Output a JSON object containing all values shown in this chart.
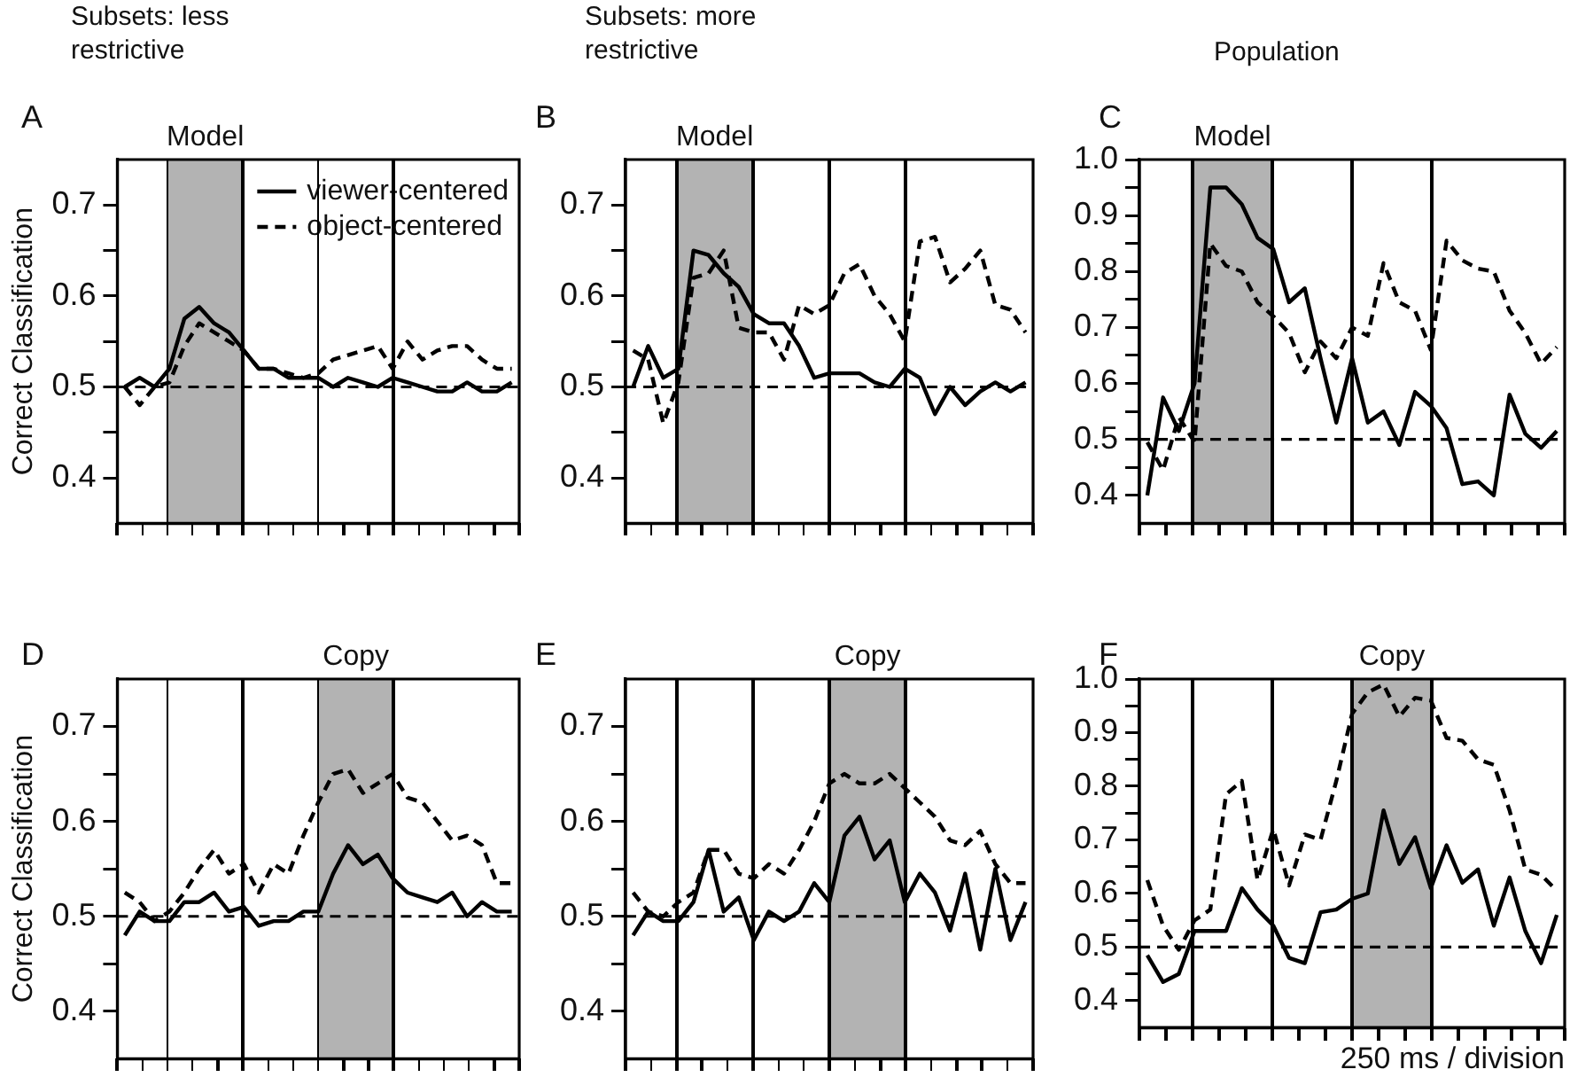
{
  "chart_data": [
    {
      "type": "line",
      "title": "Subsets: less restrictive",
      "ylabel": "Correct Classification",
      "annotations": [
        "A",
        "Model"
      ],
      "legend": "top right",
      "marker": "none",
      "grid": false,
      "tick_labels": "y",
      "categories": [
        null,
        null,
        null,
        null,
        null,
        null,
        null,
        null,
        null,
        null,
        null,
        null,
        null,
        null,
        null,
        null,
        null,
        null,
        null,
        null,
        null,
        null,
        null,
        null,
        null,
        null,
        null
      ],
      "series": [
        {
          "name": "viewer-centered",
          "color": "#000000",
          "line_style": "solid",
          "values": [
            0.5,
            0.51,
            0.5,
            0.52,
            0.575,
            0.588,
            0.57,
            0.56,
            0.54,
            0.52,
            0.52,
            0.51,
            0.51,
            0.51,
            0.5,
            0.51,
            0.505,
            0.5,
            0.51,
            0.505,
            0.5,
            0.495,
            0.495,
            0.505,
            0.495,
            0.495,
            0.505
          ]
        },
        {
          "name": "object-centered",
          "color": "#000000",
          "line_style": "dashed",
          "values": [
            0.5,
            0.48,
            0.5,
            0.505,
            0.545,
            0.57,
            0.56,
            0.55,
            0.54,
            0.52,
            0.52,
            0.515,
            0.51,
            0.515,
            0.53,
            0.535,
            0.54,
            0.545,
            0.52,
            0.55,
            0.53,
            0.54,
            0.545,
            0.545,
            0.53,
            0.52,
            0.52
          ]
        }
      ],
      "ylim": [
        0.35,
        0.75
      ],
      "yticks": [
        0.4,
        {
          "value": 0.45,
          "label": null
        },
        0.5,
        {
          "value": 0.55,
          "label": null
        },
        0.6,
        {
          "value": 0.65,
          "label": null
        },
        0.7
      ],
      "ref_lines": [
        {
          "axis": "y",
          "value": 0.5,
          "color": "#000000",
          "line_style": "dashed"
        }
      ]
    },
    {
      "type": "line",
      "title": "Subsets: more restrictive",
      "annotations": [
        "B",
        "Model"
      ],
      "marker": "none",
      "grid": false,
      "tick_labels": "y",
      "categories": [
        null,
        null,
        null,
        null,
        null,
        null,
        null,
        null,
        null,
        null,
        null,
        null,
        null,
        null,
        null,
        null,
        null,
        null,
        null,
        null,
        null,
        null,
        null,
        null,
        null,
        null,
        null
      ],
      "series": [
        {
          "color": "#000000",
          "line_style": "solid",
          "values": [
            0.5,
            0.545,
            0.51,
            0.52,
            0.65,
            0.645,
            0.625,
            0.61,
            0.58,
            0.57,
            0.57,
            0.545,
            0.51,
            0.515,
            0.515,
            0.515,
            0.505,
            0.5,
            0.52,
            0.51,
            0.47,
            0.5,
            0.48,
            0.495,
            0.505,
            0.495,
            0.505
          ]
        },
        {
          "color": "#000000",
          "line_style": "dashed",
          "values": [
            0.54,
            0.53,
            0.46,
            0.505,
            0.62,
            0.625,
            0.65,
            0.565,
            0.56,
            0.56,
            0.53,
            0.59,
            0.58,
            0.59,
            0.625,
            0.635,
            0.6,
            0.58,
            0.55,
            0.66,
            0.665,
            0.615,
            0.63,
            0.65,
            0.59,
            0.585,
            0.56
          ]
        }
      ],
      "ylim": [
        0.35,
        0.75
      ],
      "yticks": [
        0.4,
        {
          "value": 0.45,
          "label": null
        },
        0.5,
        {
          "value": 0.55,
          "label": null
        },
        0.6,
        {
          "value": 0.65,
          "label": null
        },
        0.7
      ],
      "ref_lines": [
        {
          "axis": "y",
          "value": 0.5,
          "color": "#000000",
          "line_style": "dashed"
        }
      ]
    },
    {
      "type": "line",
      "title": "Population",
      "annotations": [
        "C",
        "Model"
      ],
      "marker": "none",
      "grid": false,
      "tick_labels": "y",
      "categories": [
        null,
        null,
        null,
        null,
        null,
        null,
        null,
        null,
        null,
        null,
        null,
        null,
        null,
        null,
        null,
        null,
        null,
        null,
        null,
        null,
        null,
        null,
        null,
        null,
        null,
        null,
        null
      ],
      "series": [
        {
          "color": "#000000",
          "line_style": "solid",
          "values": [
            0.4,
            0.575,
            0.515,
            0.6,
            0.95,
            0.95,
            0.92,
            0.86,
            0.84,
            0.745,
            0.77,
            0.645,
            0.53,
            0.645,
            0.53,
            0.55,
            0.49,
            0.585,
            0.56,
            0.52,
            0.42,
            0.425,
            0.4,
            0.58,
            0.51,
            0.485,
            0.515
          ]
        },
        {
          "color": "#000000",
          "line_style": "dashed",
          "values": [
            0.495,
            0.445,
            0.54,
            0.495,
            0.85,
            0.81,
            0.8,
            0.745,
            0.72,
            0.69,
            0.62,
            0.675,
            0.645,
            0.7,
            0.685,
            0.815,
            0.745,
            0.73,
            0.66,
            0.855,
            0.82,
            0.805,
            0.8,
            0.73,
            0.69,
            0.635,
            0.665
          ]
        }
      ],
      "ylim": [
        0.35,
        1.0
      ],
      "yticks": [
        0.4,
        {
          "value": 0.45,
          "label": null
        },
        0.5,
        {
          "value": 0.55,
          "label": null
        },
        0.6,
        {
          "value": 0.65,
          "label": null
        },
        0.7,
        {
          "value": 0.75,
          "label": null
        },
        0.8,
        {
          "value": 0.85,
          "label": null
        },
        0.9,
        {
          "value": 0.95,
          "label": null
        },
        {
          "value": 1.0,
          "label": "1.0"
        }
      ],
      "ref_lines": [
        {
          "axis": "y",
          "value": 0.5,
          "color": "#000000",
          "line_style": "dashed"
        }
      ]
    },
    {
      "type": "line",
      "ylabel": "Correct Classification",
      "annotations": [
        "D",
        "Copy"
      ],
      "marker": "none",
      "grid": false,
      "tick_labels": "y",
      "categories": [
        null,
        null,
        null,
        null,
        null,
        null,
        null,
        null,
        null,
        null,
        null,
        null,
        null,
        null,
        null,
        null,
        null,
        null,
        null,
        null,
        null,
        null,
        null,
        null,
        null,
        null,
        null
      ],
      "series": [
        {
          "color": "#000000",
          "line_style": "solid",
          "values": [
            0.48,
            0.505,
            0.495,
            0.495,
            0.515,
            0.515,
            0.525,
            0.505,
            0.51,
            0.49,
            0.495,
            0.495,
            0.505,
            0.505,
            0.545,
            0.575,
            0.555,
            0.565,
            0.54,
            0.525,
            0.52,
            0.515,
            0.525,
            0.5,
            0.515,
            0.505,
            0.505
          ]
        },
        {
          "color": "#000000",
          "line_style": "dashed",
          "values": [
            0.525,
            0.515,
            0.495,
            0.505,
            0.525,
            0.55,
            0.57,
            0.545,
            0.555,
            0.525,
            0.555,
            0.545,
            0.585,
            0.62,
            0.65,
            0.655,
            0.63,
            0.64,
            0.65,
            0.625,
            0.62,
            0.6,
            0.58,
            0.585,
            0.575,
            0.535,
            0.535
          ]
        }
      ],
      "ylim": [
        0.35,
        0.75
      ],
      "yticks": [
        0.4,
        {
          "value": 0.45,
          "label": null
        },
        0.5,
        {
          "value": 0.55,
          "label": null
        },
        0.6,
        {
          "value": 0.65,
          "label": null
        },
        0.7
      ],
      "ref_lines": [
        {
          "axis": "y",
          "value": 0.5,
          "color": "#000000",
          "line_style": "dashed"
        }
      ]
    },
    {
      "type": "line",
      "annotations": [
        "E",
        "Copy"
      ],
      "marker": "none",
      "grid": false,
      "tick_labels": "y",
      "categories": [
        null,
        null,
        null,
        null,
        null,
        null,
        null,
        null,
        null,
        null,
        null,
        null,
        null,
        null,
        null,
        null,
        null,
        null,
        null,
        null,
        null,
        null,
        null,
        null,
        null,
        null,
        null
      ],
      "series": [
        {
          "color": "#000000",
          "line_style": "solid",
          "values": [
            0.48,
            0.505,
            0.495,
            0.495,
            0.515,
            0.57,
            0.505,
            0.52,
            0.475,
            0.505,
            0.495,
            0.505,
            0.535,
            0.515,
            0.585,
            0.605,
            0.56,
            0.58,
            0.515,
            0.545,
            0.525,
            0.485,
            0.545,
            0.465,
            0.55,
            0.475,
            0.515
          ]
        },
        {
          "color": "#000000",
          "line_style": "dashed",
          "values": [
            0.525,
            0.505,
            0.5,
            0.515,
            0.525,
            0.57,
            0.57,
            0.545,
            0.54,
            0.555,
            0.545,
            0.57,
            0.6,
            0.64,
            0.65,
            0.64,
            0.64,
            0.65,
            0.635,
            0.62,
            0.605,
            0.58,
            0.575,
            0.59,
            0.555,
            0.535,
            0.535
          ]
        }
      ],
      "ylim": [
        0.35,
        0.75
      ],
      "yticks": [
        0.4,
        {
          "value": 0.45,
          "label": null
        },
        0.5,
        {
          "value": 0.55,
          "label": null
        },
        0.6,
        {
          "value": 0.65,
          "label": null
        },
        0.7
      ],
      "ref_lines": [
        {
          "axis": "y",
          "value": 0.5,
          "color": "#000000",
          "line_style": "dashed"
        }
      ]
    },
    {
      "type": "line",
      "xlabel": "250 ms / division",
      "annotations": [
        "F",
        "Copy"
      ],
      "marker": "none",
      "grid": false,
      "tick_labels": "y",
      "categories": [
        null,
        null,
        null,
        null,
        null,
        null,
        null,
        null,
        null,
        null,
        null,
        null,
        null,
        null,
        null,
        null,
        null,
        null,
        null,
        null,
        null,
        null,
        null,
        null,
        null,
        null,
        null
      ],
      "series": [
        {
          "color": "#000000",
          "line_style": "solid",
          "values": [
            0.485,
            0.435,
            0.45,
            0.53,
            0.53,
            0.53,
            0.61,
            0.57,
            0.54,
            0.48,
            0.47,
            0.565,
            0.57,
            0.59,
            0.6,
            0.755,
            0.655,
            0.705,
            0.61,
            0.69,
            0.62,
            0.645,
            0.54,
            0.63,
            0.53,
            0.47,
            0.56
          ]
        },
        {
          "color": "#000000",
          "line_style": "dashed",
          "values": [
            0.625,
            0.54,
            0.495,
            0.55,
            0.57,
            0.785,
            0.81,
            0.625,
            0.72,
            0.615,
            0.71,
            0.7,
            0.81,
            0.935,
            0.975,
            0.99,
            0.93,
            0.965,
            0.96,
            0.89,
            0.885,
            0.85,
            0.84,
            0.755,
            0.645,
            0.635,
            0.605
          ]
        }
      ],
      "ylim": [
        0.35,
        1.0
      ],
      "yticks": [
        0.4,
        {
          "value": 0.45,
          "label": null
        },
        0.5,
        {
          "value": 0.55,
          "label": null
        },
        0.6,
        {
          "value": 0.65,
          "label": null
        },
        0.7,
        {
          "value": 0.75,
          "label": null
        },
        0.8,
        {
          "value": 0.85,
          "label": null
        },
        0.9,
        {
          "value": 0.95,
          "label": null
        },
        {
          "value": 1.0,
          "label": "1.0"
        }
      ],
      "ref_lines": [
        {
          "axis": "y",
          "value": 0.5,
          "color": "#000000",
          "line_style": "dashed"
        }
      ]
    }
  ]
}
